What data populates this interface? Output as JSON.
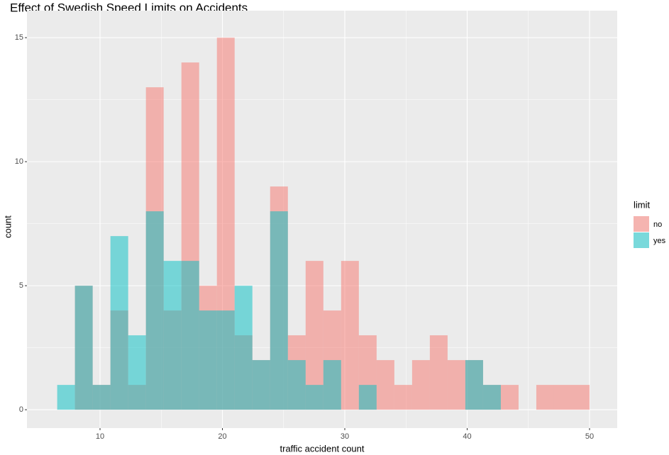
{
  "chart_data": {
    "type": "histogram",
    "title": "Effect of Swedish Speed Limits on Accidents",
    "x_label": "traffic accident count",
    "y_label": "count",
    "bins": [
      6.5,
      7.95,
      9.4,
      10.85,
      12.3,
      13.75,
      15.2,
      16.65,
      18.1,
      19.55,
      21,
      22.45,
      23.9,
      25.35,
      26.8,
      28.25,
      29.7,
      31.15,
      32.6,
      34.05,
      35.5,
      36.95,
      38.4,
      39.85,
      41.3,
      42.75,
      44.2,
      45.65,
      47.1,
      48.55,
      50
    ],
    "series": [
      {
        "name": "no",
        "color": "#F8766D",
        "values": [
          0,
          5,
          1,
          4,
          1,
          13,
          4,
          14,
          5,
          15,
          3,
          2,
          9,
          3,
          6,
          4,
          6,
          3,
          2,
          1,
          2,
          3,
          2,
          2,
          1,
          1,
          0,
          1,
          1,
          1
        ]
      },
      {
        "name": "yes",
        "color": "#00BFC4",
        "values": [
          1,
          5,
          1,
          7,
          3,
          8,
          6,
          6,
          4,
          4,
          5,
          2,
          8,
          2,
          1,
          2,
          0,
          1,
          0,
          0,
          0,
          0,
          0,
          2,
          1,
          0,
          0,
          0,
          0,
          0
        ]
      }
    ],
    "alpha": 0.5,
    "legend_title": "limit",
    "legend_position": "right",
    "xlim": [
      4.03,
      52.26
    ],
    "xticks": [
      10,
      20,
      30,
      40,
      50
    ],
    "ylim": [
      -0.74,
      16.09
    ],
    "yticks": [
      0,
      5,
      10,
      15
    ],
    "grid": true
  }
}
